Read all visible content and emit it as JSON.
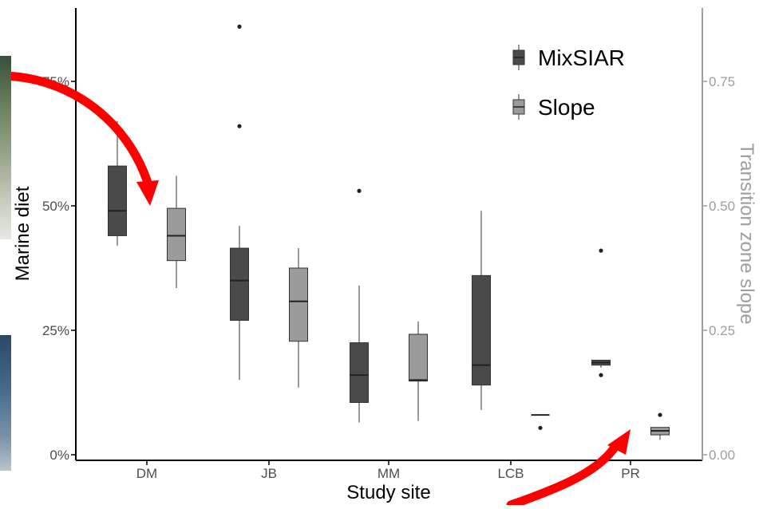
{
  "chart_data": {
    "type": "box",
    "xlabel": "Study site",
    "ylabel_left": "Marine diet",
    "ylabel_right": "Transition zone slope",
    "categories": [
      "DM",
      "JB",
      "MM",
      "LCB",
      "PR"
    ],
    "ylim_left": [
      0,
      0.88
    ],
    "ylim_right": [
      0,
      0.88
    ],
    "left_ticks": [
      {
        "value": 0,
        "label": "0%"
      },
      {
        "value": 0.25,
        "label": "25%"
      },
      {
        "value": 0.5,
        "label": "50%"
      },
      {
        "value": 0.75,
        "label": "75%"
      }
    ],
    "right_ticks": [
      {
        "value": 0,
        "label": "0.00"
      },
      {
        "value": 0.25,
        "label": "0.25"
      },
      {
        "value": 0.5,
        "label": "0.50"
      },
      {
        "value": 0.75,
        "label": "0.75"
      }
    ],
    "legend_position": "top-right",
    "series": [
      {
        "name": "MixSIAR",
        "color": "#4a4a4a",
        "boxes": [
          {
            "category": "DM",
            "whisker_low": 0.42,
            "q1": 0.44,
            "median": 0.49,
            "q3": 0.58,
            "whisker_high": 0.67,
            "outliers": []
          },
          {
            "category": "JB",
            "whisker_low": 0.15,
            "q1": 0.27,
            "median": 0.35,
            "q3": 0.415,
            "whisker_high": 0.46,
            "outliers": [
              0.66,
              0.86
            ]
          },
          {
            "category": "MM",
            "whisker_low": 0.065,
            "q1": 0.105,
            "median": 0.16,
            "q3": 0.225,
            "whisker_high": 0.34,
            "outliers": [
              0.53
            ]
          },
          {
            "category": "LCB",
            "whisker_low": 0.09,
            "q1": 0.14,
            "median": 0.18,
            "q3": 0.36,
            "whisker_high": 0.49,
            "outliers": []
          },
          {
            "category": "PR",
            "whisker_low": 0.175,
            "q1": 0.18,
            "median": 0.185,
            "q3": 0.19,
            "whisker_high": 0.19,
            "outliers": [
              0.16,
              0.41
            ]
          }
        ]
      },
      {
        "name": "Slope",
        "color": "#9b9b9b",
        "boxes": [
          {
            "category": "DM",
            "whisker_low": 0.335,
            "q1": 0.39,
            "median": 0.44,
            "q3": 0.495,
            "whisker_high": 0.56,
            "outliers": []
          },
          {
            "category": "JB",
            "whisker_low": 0.135,
            "q1": 0.228,
            "median": 0.308,
            "q3": 0.375,
            "whisker_high": 0.415,
            "outliers": []
          },
          {
            "category": "MM",
            "whisker_low": 0.068,
            "q1": 0.148,
            "median": 0.15,
            "q3": 0.242,
            "whisker_high": 0.268,
            "outliers": []
          },
          {
            "category": "LCB",
            "whisker_low": 0.08,
            "q1": 0.08,
            "median": 0.08,
            "q3": 0.08,
            "whisker_high": 0.08,
            "outliers": [
              0.054
            ]
          },
          {
            "category": "PR",
            "whisker_low": 0.03,
            "q1": 0.04,
            "median": 0.048,
            "q3": 0.055,
            "whisker_high": 0.055,
            "outliers": [
              0.08
            ]
          }
        ]
      }
    ],
    "colors": {
      "axis": "#000000",
      "right_axis": "#9e9e9e",
      "tick_label": "#4d4d4d",
      "annotation_arrow": "#ff0000"
    }
  }
}
